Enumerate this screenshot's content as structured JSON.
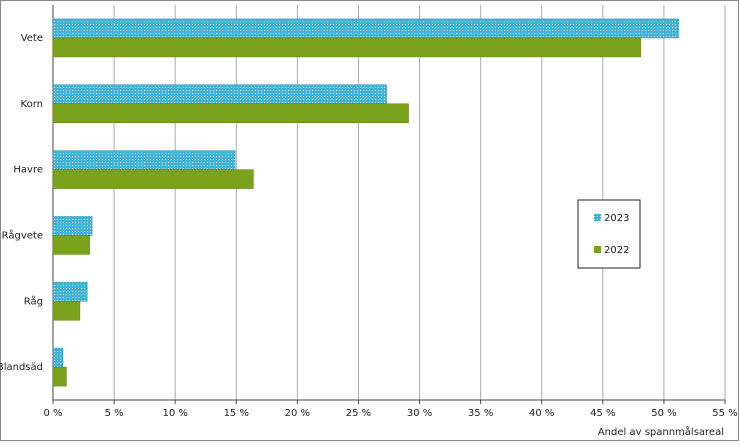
{
  "chart_data": {
    "type": "hbar",
    "categories": [
      "Vete",
      "Korn",
      "Havre",
      "Rågvete",
      "Råg",
      "Blandsäd"
    ],
    "series": [
      {
        "name": "2023",
        "color": "#3fb4d8",
        "pattern": "hatched",
        "values": [
          51.2,
          27.3,
          14.9,
          3.2,
          2.8,
          0.8
        ]
      },
      {
        "name": "2022",
        "color": "#7ba21c",
        "values": [
          48.1,
          29.1,
          16.4,
          3.0,
          2.2,
          1.1
        ]
      }
    ],
    "xlim": [
      0,
      55
    ],
    "xticks": [
      {
        "value": 0,
        "label": "0 %"
      },
      {
        "value": 5,
        "label": "5 %"
      },
      {
        "value": 10,
        "label": "10 %"
      },
      {
        "value": 15,
        "label": "15 %"
      },
      {
        "value": 20,
        "label": "20 %"
      },
      {
        "value": 25,
        "label": "25 %"
      },
      {
        "value": 30,
        "label": "30 %"
      },
      {
        "value": 35,
        "label": "35 %"
      },
      {
        "value": 40,
        "label": "40 %"
      },
      {
        "value": 45,
        "label": "45 %"
      },
      {
        "value": 50,
        "label": "50 %"
      },
      {
        "value": 55,
        "label": "55 %"
      }
    ],
    "xlabel": "Andel av spannmålsareal",
    "grid": true,
    "legend": "right"
  }
}
